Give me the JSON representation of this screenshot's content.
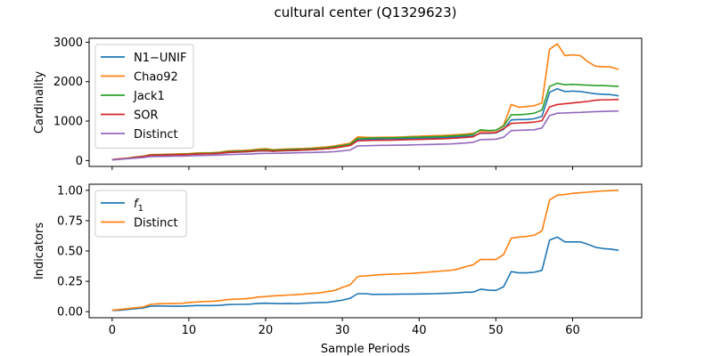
{
  "title": "cultural center (Q1329623)",
  "chart_data": [
    {
      "type": "line",
      "ylabel": "Cardinality",
      "xlabel": "",
      "xlim": [
        -3,
        69
      ],
      "ylim": [
        -150,
        3100
      ],
      "x_ticks": [
        0,
        10,
        20,
        30,
        40,
        50,
        60
      ],
      "y_ticks": [
        0,
        1000,
        2000,
        3000
      ],
      "y_tick_labels": [
        "0",
        "1000",
        "2000",
        "3000"
      ],
      "show_x_tick_labels": false,
      "legend": "top-left",
      "x": [
        0,
        1,
        2,
        3,
        4,
        5,
        6,
        7,
        8,
        9,
        10,
        11,
        12,
        13,
        14,
        15,
        16,
        17,
        18,
        19,
        20,
        21,
        22,
        23,
        24,
        25,
        26,
        27,
        28,
        29,
        30,
        31,
        32,
        33,
        34,
        35,
        36,
        37,
        38,
        39,
        40,
        41,
        42,
        43,
        44,
        45,
        46,
        47,
        48,
        49,
        50,
        51,
        52,
        53,
        54,
        55,
        56,
        57,
        58,
        59,
        60,
        61,
        62,
        63,
        64,
        65,
        66
      ],
      "series": [
        {
          "name": "N1−UNIF",
          "color": "#1f77b4",
          "values": [
            20,
            40,
            55,
            80,
            100,
            130,
            135,
            140,
            145,
            150,
            155,
            165,
            170,
            175,
            180,
            200,
            210,
            215,
            225,
            240,
            245,
            235,
            245,
            250,
            255,
            265,
            275,
            285,
            300,
            320,
            350,
            380,
            520,
            530,
            540,
            545,
            550,
            550,
            555,
            560,
            565,
            570,
            575,
            580,
            590,
            600,
            610,
            620,
            690,
            690,
            700,
            790,
            1030,
            1040,
            1040,
            1060,
            1120,
            1730,
            1820,
            1750,
            1760,
            1750,
            1720,
            1690,
            1680,
            1670,
            1640
          ]
        },
        {
          "name": "Chao92",
          "color": "#ff7f0e",
          "values": [
            25,
            45,
            60,
            90,
            110,
            150,
            155,
            160,
            165,
            170,
            175,
            190,
            195,
            200,
            210,
            240,
            250,
            255,
            265,
            290,
            300,
            275,
            285,
            295,
            300,
            305,
            315,
            330,
            345,
            370,
            405,
            440,
            600,
            590,
            585,
            590,
            590,
            595,
            600,
            610,
            615,
            625,
            630,
            635,
            645,
            655,
            670,
            690,
            750,
            750,
            760,
            890,
            1420,
            1350,
            1370,
            1390,
            1460,
            2820,
            2960,
            2660,
            2680,
            2660,
            2500,
            2390,
            2380,
            2370,
            2310
          ]
        },
        {
          "name": "Jack1",
          "color": "#2ca02c",
          "values": [
            22,
            42,
            58,
            85,
            105,
            140,
            145,
            150,
            155,
            160,
            165,
            180,
            185,
            190,
            200,
            225,
            235,
            240,
            250,
            270,
            280,
            260,
            270,
            280,
            285,
            290,
            300,
            310,
            325,
            350,
            380,
            415,
            560,
            565,
            570,
            575,
            575,
            580,
            585,
            590,
            595,
            600,
            605,
            610,
            620,
            630,
            645,
            660,
            780,
            760,
            770,
            870,
            1160,
            1160,
            1175,
            1200,
            1280,
            1880,
            1960,
            1920,
            1930,
            1920,
            1910,
            1900,
            1900,
            1890,
            1880
          ]
        },
        {
          "name": "SOR",
          "color": "#d62728",
          "values": [
            20,
            40,
            55,
            80,
            100,
            130,
            135,
            140,
            145,
            150,
            155,
            165,
            170,
            175,
            185,
            205,
            215,
            220,
            230,
            245,
            250,
            235,
            245,
            255,
            260,
            265,
            275,
            285,
            300,
            320,
            350,
            380,
            500,
            505,
            510,
            515,
            515,
            520,
            525,
            530,
            535,
            540,
            545,
            550,
            560,
            570,
            585,
            600,
            700,
            700,
            710,
            810,
            940,
            950,
            960,
            975,
            1010,
            1360,
            1420,
            1440,
            1460,
            1480,
            1500,
            1530,
            1540,
            1540,
            1550
          ]
        },
        {
          "name": "Distinct",
          "color": "#9467bd",
          "values": [
            15,
            30,
            45,
            60,
            75,
            100,
            103,
            106,
            110,
            113,
            116,
            125,
            130,
            133,
            140,
            150,
            155,
            160,
            165,
            175,
            180,
            180,
            185,
            190,
            195,
            200,
            205,
            210,
            215,
            225,
            245,
            265,
            370,
            375,
            380,
            385,
            385,
            390,
            390,
            395,
            400,
            405,
            410,
            415,
            420,
            430,
            445,
            460,
            530,
            535,
            540,
            590,
            760,
            765,
            775,
            780,
            825,
            1140,
            1200,
            1205,
            1215,
            1220,
            1230,
            1240,
            1245,
            1250,
            1255
          ]
        }
      ]
    },
    {
      "type": "line",
      "ylabel": "Indicators",
      "xlabel": "Sample Periods",
      "xlim": [
        -3,
        69
      ],
      "ylim": [
        -0.05,
        1.05
      ],
      "x_ticks": [
        0,
        10,
        20,
        30,
        40,
        50,
        60
      ],
      "x_tick_labels": [
        "0",
        "10",
        "20",
        "30",
        "40",
        "50",
        "60"
      ],
      "y_ticks": [
        0.0,
        0.25,
        0.5,
        0.75,
        1.0
      ],
      "y_tick_labels": [
        "0.00",
        "0.25",
        "0.50",
        "0.75",
        "1.00"
      ],
      "show_x_tick_labels": true,
      "legend": "top-left",
      "x": [
        0,
        1,
        2,
        3,
        4,
        5,
        6,
        7,
        8,
        9,
        10,
        11,
        12,
        13,
        14,
        15,
        16,
        17,
        18,
        19,
        20,
        21,
        22,
        23,
        24,
        25,
        26,
        27,
        28,
        29,
        30,
        31,
        32,
        33,
        34,
        35,
        36,
        37,
        38,
        39,
        40,
        41,
        42,
        43,
        44,
        45,
        46,
        47,
        48,
        49,
        50,
        51,
        52,
        53,
        54,
        55,
        56,
        57,
        58,
        59,
        60,
        61,
        62,
        63,
        64,
        65,
        66
      ],
      "series": [
        {
          "name": "f",
          "name_sub": "1",
          "color": "#1f77b4",
          "values": [
            0.01,
            0.012,
            0.018,
            0.025,
            0.03,
            0.045,
            0.048,
            0.046,
            0.045,
            0.045,
            0.048,
            0.05,
            0.05,
            0.05,
            0.052,
            0.058,
            0.06,
            0.06,
            0.062,
            0.068,
            0.07,
            0.068,
            0.066,
            0.068,
            0.066,
            0.07,
            0.072,
            0.075,
            0.076,
            0.085,
            0.095,
            0.11,
            0.148,
            0.148,
            0.142,
            0.143,
            0.143,
            0.144,
            0.145,
            0.145,
            0.146,
            0.147,
            0.148,
            0.15,
            0.152,
            0.155,
            0.16,
            0.16,
            0.185,
            0.178,
            0.175,
            0.205,
            0.33,
            0.32,
            0.32,
            0.325,
            0.34,
            0.59,
            0.615,
            0.575,
            0.575,
            0.575,
            0.555,
            0.53,
            0.52,
            0.515,
            0.505
          ]
        },
        {
          "name": "Distinct",
          "color": "#ff7f0e",
          "values": [
            0.012,
            0.018,
            0.025,
            0.032,
            0.038,
            0.06,
            0.065,
            0.066,
            0.067,
            0.068,
            0.075,
            0.08,
            0.083,
            0.085,
            0.09,
            0.1,
            0.103,
            0.105,
            0.11,
            0.12,
            0.125,
            0.13,
            0.133,
            0.137,
            0.14,
            0.145,
            0.15,
            0.155,
            0.165,
            0.175,
            0.2,
            0.22,
            0.29,
            0.295,
            0.3,
            0.305,
            0.308,
            0.31,
            0.313,
            0.315,
            0.32,
            0.325,
            0.33,
            0.335,
            0.34,
            0.35,
            0.37,
            0.385,
            0.43,
            0.43,
            0.43,
            0.47,
            0.605,
            0.615,
            0.62,
            0.63,
            0.665,
            0.92,
            0.96,
            0.965,
            0.975,
            0.98,
            0.985,
            0.99,
            0.995,
            0.997,
            1.0
          ]
        }
      ]
    }
  ]
}
